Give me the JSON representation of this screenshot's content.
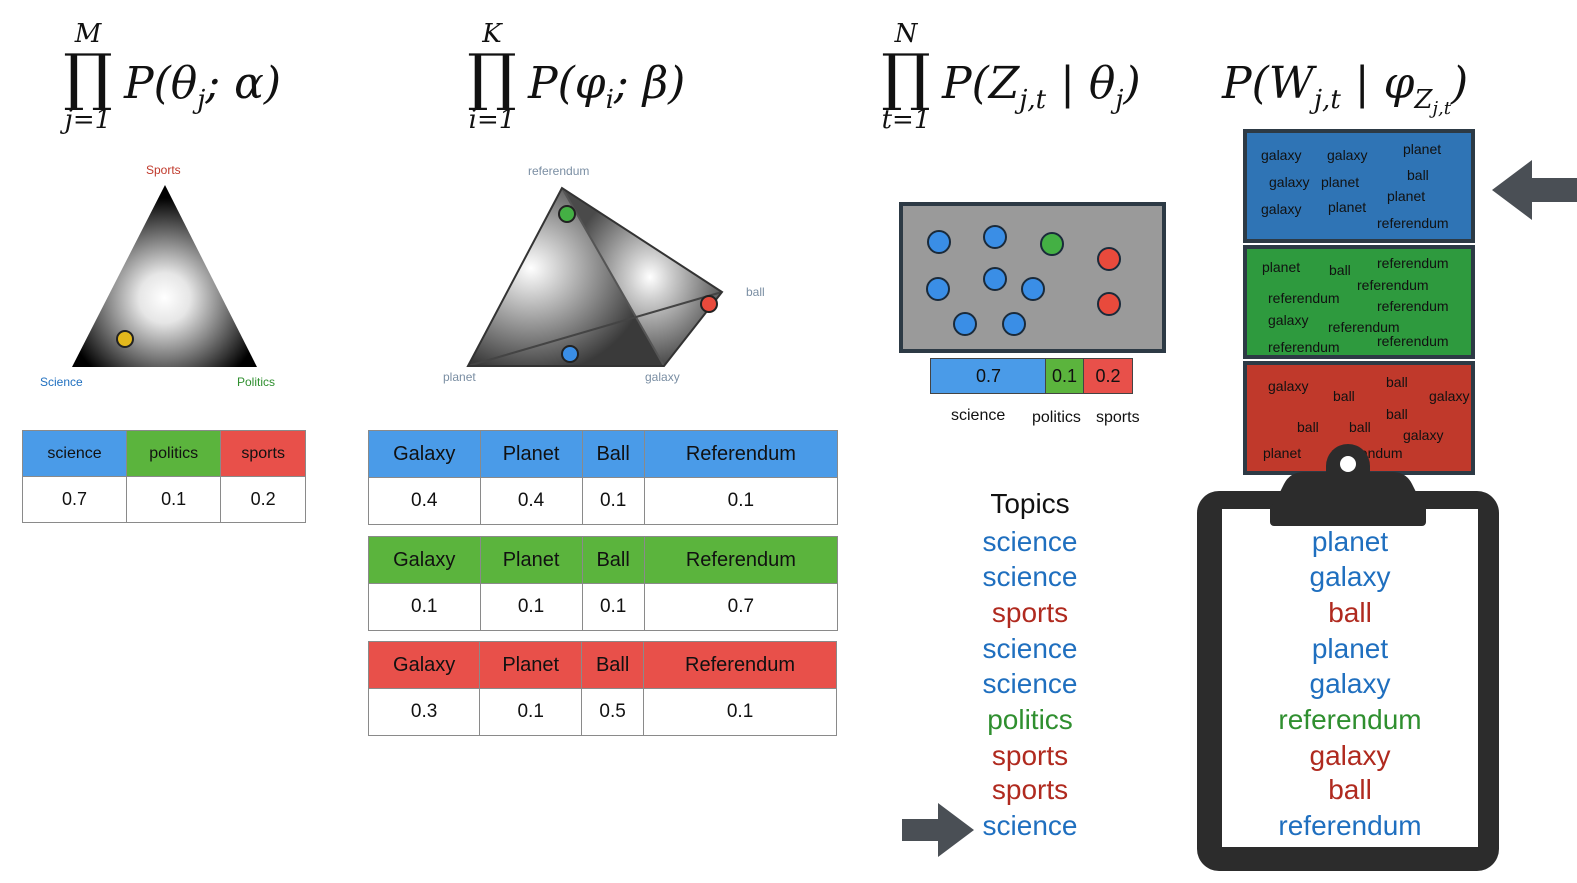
{
  "formulas": {
    "f1": {
      "upper": "M",
      "lower": "j=1",
      "func": "P(",
      "var": "θ",
      "sub": "j",
      "rest": "; α)"
    },
    "f2": {
      "upper": "K",
      "lower": "i=1",
      "func": "P(",
      "var": "φ",
      "sub": "i",
      "rest": "; β)"
    },
    "f3": {
      "upper": "N",
      "lower": "t=1",
      "func": "P(Z",
      "sub": "j,t",
      "mid": " | θ",
      "sub2": "j",
      "rest": ")"
    },
    "f4": {
      "func": "P(W",
      "sub": "j,t",
      "mid": " | φ",
      "sub2": "Z",
      "sub3": "j,t",
      "rest": ")"
    }
  },
  "simplex_topics": {
    "top": "Sports",
    "left": "Science",
    "right": "Politics"
  },
  "simplex_words": {
    "top": "referendum",
    "right": "ball",
    "left": "planet",
    "bottom": "galaxy"
  },
  "theta_table": {
    "headers": [
      "science",
      "politics",
      "sports"
    ],
    "values": [
      "0.7",
      "0.1",
      "0.2"
    ]
  },
  "phi_tables": [
    {
      "headers": [
        "Galaxy",
        "Planet",
        "Ball",
        "Referendum"
      ],
      "values": [
        "0.4",
        "0.4",
        "0.1",
        "0.1"
      ],
      "color": "#4a9be8"
    },
    {
      "headers": [
        "Galaxy",
        "Planet",
        "Ball",
        "Referendum"
      ],
      "values": [
        "0.1",
        "0.1",
        "0.1",
        "0.7"
      ],
      "color": "#5bb43d"
    },
    {
      "headers": [
        "Galaxy",
        "Planet",
        "Ball",
        "Referendum"
      ],
      "values": [
        "0.3",
        "0.1",
        "0.5",
        "0.1"
      ],
      "color": "#e8504a"
    }
  ],
  "doc_bar": {
    "values": [
      "0.7",
      "0.1",
      "0.2"
    ],
    "labels": [
      "science",
      "politics",
      "sports"
    ]
  },
  "topics": {
    "title": "Topics",
    "items": [
      {
        "text": "science",
        "color": "#1f6fbf"
      },
      {
        "text": "science",
        "color": "#1f6fbf"
      },
      {
        "text": "sports",
        "color": "#b02a1f"
      },
      {
        "text": "science",
        "color": "#1f6fbf"
      },
      {
        "text": "science",
        "color": "#1f6fbf"
      },
      {
        "text": "politics",
        "color": "#2f8f2f"
      },
      {
        "text": "sports",
        "color": "#b02a1f"
      },
      {
        "text": "sports",
        "color": "#b02a1f"
      },
      {
        "text": "science",
        "color": "#1f6fbf"
      }
    ]
  },
  "clouds": {
    "blue": [
      "galaxy",
      "galaxy",
      "planet",
      "galaxy",
      "planet",
      "ball",
      "planet",
      "galaxy",
      "planet",
      "referendum"
    ],
    "green": [
      "planet",
      "ball",
      "referendum",
      "referendum",
      "referendum",
      "referendum",
      "galaxy",
      "referendum",
      "referendum",
      "referendum"
    ],
    "red": [
      "galaxy",
      "ball",
      "ball",
      "galaxy",
      "ball",
      "ball",
      "ball",
      "galaxy",
      "planet",
      "referendum"
    ]
  },
  "clipboard_words": [
    {
      "text": "planet",
      "color": "#1f6fbf"
    },
    {
      "text": "galaxy",
      "color": "#1f6fbf"
    },
    {
      "text": "ball",
      "color": "#b02a1f"
    },
    {
      "text": "planet",
      "color": "#1f6fbf"
    },
    {
      "text": "galaxy",
      "color": "#1f6fbf"
    },
    {
      "text": "referendum",
      "color": "#2f8f2f"
    },
    {
      "text": "galaxy",
      "color": "#b02a1f"
    },
    {
      "text": "ball",
      "color": "#b02a1f"
    },
    {
      "text": "referendum",
      "color": "#1f6fbf"
    }
  ],
  "colors": {
    "science": "#4a9be8",
    "politics": "#5bb43d",
    "sports": "#e8504a"
  }
}
